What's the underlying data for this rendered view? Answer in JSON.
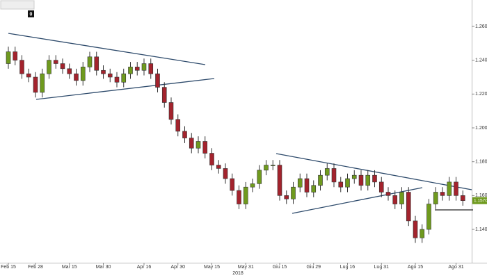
{
  "chart_data": {
    "type": "candlestick",
    "badge_text": "0",
    "x_year_label": "2018",
    "categories": [
      "Feb 15",
      null,
      null,
      null,
      "Feb 28",
      null,
      null,
      null,
      null,
      "Mar 15",
      null,
      null,
      null,
      null,
      "Mar 30",
      null,
      null,
      null,
      null,
      null,
      "Apr 16",
      null,
      null,
      null,
      null,
      "Apr 30",
      null,
      null,
      null,
      null,
      "May 15",
      null,
      null,
      null,
      null,
      "May 31",
      null,
      null,
      null,
      null,
      "Giu 15",
      null,
      null,
      null,
      null,
      "Giu 29",
      null,
      null,
      null,
      null,
      "Lug 16",
      null,
      null,
      null,
      null,
      "Lug 31",
      null,
      null,
      null,
      null,
      "Ago 15",
      null,
      null,
      null,
      null,
      null,
      "Ago 31",
      null
    ],
    "open": [
      1.238,
      1.245,
      1.24,
      1.232,
      1.23,
      1.221,
      1.232,
      1.24,
      1.238,
      1.235,
      1.232,
      1.228,
      1.236,
      1.242,
      1.234,
      1.232,
      1.23,
      1.227,
      1.232,
      1.236,
      1.234,
      1.238,
      1.232,
      1.224,
      1.215,
      1.205,
      1.198,
      1.194,
      1.188,
      1.192,
      1.185,
      1.178,
      1.176,
      1.17,
      1.163,
      1.155,
      1.165,
      1.167,
      1.175,
      1.178,
      1.178,
      1.16,
      1.158,
      1.165,
      1.17,
      1.162,
      1.166,
      1.172,
      1.176,
      1.168,
      1.165,
      1.17,
      1.172,
      1.166,
      1.172,
      1.168,
      1.162,
      1.16,
      1.155,
      1.162,
      1.145,
      1.135,
      1.14,
      1.155,
      1.162,
      1.16,
      1.168,
      1.16
    ],
    "high": [
      1.248,
      1.248,
      1.243,
      1.235,
      1.233,
      1.235,
      1.243,
      1.243,
      1.241,
      1.238,
      1.235,
      1.239,
      1.245,
      1.245,
      1.237,
      1.235,
      1.233,
      1.235,
      1.239,
      1.239,
      1.241,
      1.241,
      1.235,
      1.227,
      1.218,
      1.208,
      1.201,
      1.197,
      1.195,
      1.195,
      1.188,
      1.181,
      1.179,
      1.173,
      1.166,
      1.168,
      1.17,
      1.178,
      1.181,
      1.181,
      1.181,
      1.163,
      1.168,
      1.173,
      1.173,
      1.169,
      1.175,
      1.179,
      1.179,
      1.171,
      1.173,
      1.175,
      1.175,
      1.175,
      1.175,
      1.171,
      1.165,
      1.163,
      1.165,
      1.165,
      1.148,
      1.143,
      1.158,
      1.165,
      1.165,
      1.171,
      1.171,
      1.163
    ],
    "low": [
      1.235,
      1.237,
      1.229,
      1.227,
      1.218,
      1.218,
      1.229,
      1.235,
      1.232,
      1.229,
      1.225,
      1.225,
      1.233,
      1.231,
      1.229,
      1.227,
      1.224,
      1.224,
      1.229,
      1.231,
      1.231,
      1.229,
      1.221,
      1.212,
      1.202,
      1.195,
      1.191,
      1.185,
      1.185,
      1.182,
      1.175,
      1.173,
      1.167,
      1.16,
      1.152,
      1.152,
      1.162,
      1.164,
      1.172,
      1.175,
      1.157,
      1.155,
      1.155,
      1.162,
      1.159,
      1.159,
      1.163,
      1.169,
      1.165,
      1.162,
      1.162,
      1.167,
      1.163,
      1.163,
      1.165,
      1.159,
      1.157,
      1.152,
      1.152,
      1.142,
      1.132,
      1.132,
      1.137,
      1.152,
      1.157,
      1.157,
      1.157,
      1.154
    ],
    "close": [
      1.245,
      1.24,
      1.232,
      1.23,
      1.221,
      1.232,
      1.24,
      1.238,
      1.235,
      1.232,
      1.228,
      1.236,
      1.242,
      1.234,
      1.232,
      1.23,
      1.227,
      1.232,
      1.236,
      1.234,
      1.238,
      1.232,
      1.224,
      1.215,
      1.205,
      1.198,
      1.194,
      1.188,
      1.192,
      1.185,
      1.178,
      1.176,
      1.17,
      1.163,
      1.155,
      1.165,
      1.167,
      1.175,
      1.178,
      1.178,
      1.16,
      1.158,
      1.165,
      1.17,
      1.162,
      1.166,
      1.172,
      1.176,
      1.168,
      1.165,
      1.17,
      1.172,
      1.166,
      1.172,
      1.168,
      1.162,
      1.16,
      1.155,
      1.162,
      1.145,
      1.135,
      1.14,
      1.155,
      1.162,
      1.16,
      1.168,
      1.16,
      1.157
    ],
    "up_color": "#6f9a1e",
    "down_color": "#a3232d",
    "last_price": {
      "value": 1.157,
      "label": "1.1570"
    },
    "ylim": [
      1.1203,
      1.2756
    ],
    "yticks": [
      {
        "value": 1.14,
        "label": "1.1400"
      },
      {
        "value": 1.16,
        "label": "1.1600"
      },
      {
        "value": 1.18,
        "label": "1.1800"
      },
      {
        "value": 1.2,
        "label": "1.2000"
      },
      {
        "value": 1.22,
        "label": "1.2200"
      },
      {
        "value": 1.24,
        "label": "1.2400"
      },
      {
        "value": 1.26,
        "label": "1.2600"
      }
    ]
  }
}
